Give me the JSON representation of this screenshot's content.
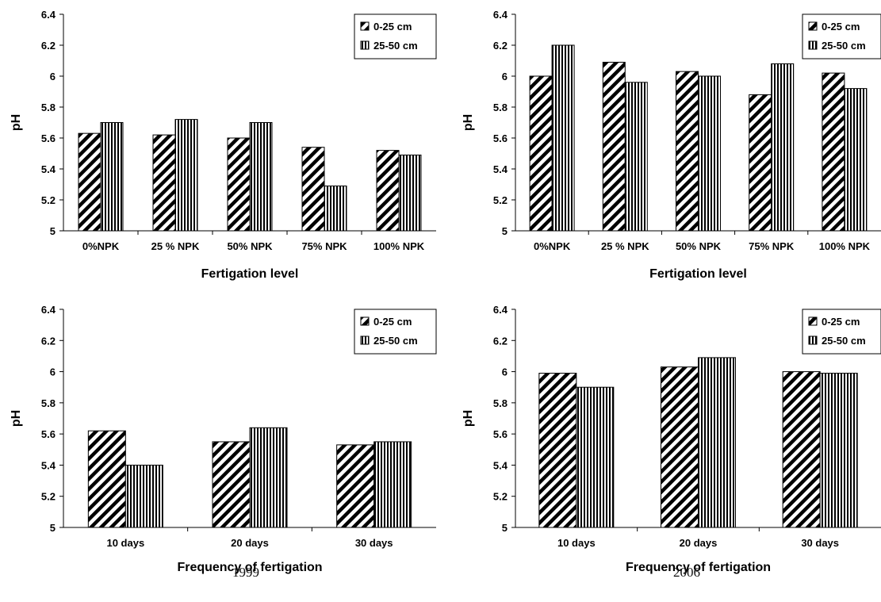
{
  "colors": {
    "stroke": "#000000",
    "fill": "#ffffff"
  },
  "captions": {
    "left": "1999",
    "right": "2006"
  },
  "chart_data": [
    {
      "type": "bar",
      "year": "1999",
      "categories": [
        "0%NPK",
        "25 % NPK",
        "50% NPK",
        "75% NPK",
        "100% NPK"
      ],
      "series": [
        {
          "name": "0-25 cm",
          "pattern": "diagonal",
          "values": [
            5.63,
            5.62,
            5.6,
            5.54,
            5.52
          ]
        },
        {
          "name": "25-50 cm",
          "pattern": "vertical",
          "values": [
            5.7,
            5.72,
            5.7,
            5.29,
            5.49
          ]
        }
      ],
      "xlabel": "Fertigation level",
      "ylabel": "pH",
      "ylim": [
        5,
        6.4
      ],
      "yticks": [
        "5",
        "5.2",
        "5.4",
        "5.6",
        "5.8",
        "6",
        "6.2",
        "6.4"
      ],
      "grid": false,
      "legend": "top-right"
    },
    {
      "type": "bar",
      "year": "2006",
      "categories": [
        "0%NPK",
        "25 % NPK",
        "50% NPK",
        "75% NPK",
        "100% NPK"
      ],
      "series": [
        {
          "name": "0-25 cm",
          "pattern": "diagonal",
          "values": [
            6.0,
            6.09,
            6.03,
            5.88,
            6.02
          ]
        },
        {
          "name": "25-50 cm",
          "pattern": "vertical",
          "values": [
            6.2,
            5.96,
            6.0,
            6.08,
            5.92
          ]
        }
      ],
      "xlabel": "Fertigation level",
      "ylabel": "pH",
      "ylim": [
        5,
        6.4
      ],
      "yticks": [
        "5",
        "5.2",
        "5.4",
        "5.6",
        "5.8",
        "6",
        "6.2",
        "6.4"
      ],
      "grid": false,
      "legend": "top-right"
    },
    {
      "type": "bar",
      "year": "1999",
      "categories": [
        "10 days",
        "20 days",
        "30 days"
      ],
      "series": [
        {
          "name": "0-25 cm",
          "pattern": "diagonal",
          "values": [
            5.62,
            5.55,
            5.53
          ]
        },
        {
          "name": "25-50 cm",
          "pattern": "vertical",
          "values": [
            5.4,
            5.64,
            5.55
          ]
        }
      ],
      "xlabel": "Frequency of fertigation",
      "ylabel": "pH",
      "ylim": [
        5,
        6.4
      ],
      "yticks": [
        "5",
        "5.2",
        "5.4",
        "5.6",
        "5.8",
        "6",
        "6.2",
        "6.4"
      ],
      "grid": false,
      "legend": "top-right"
    },
    {
      "type": "bar",
      "year": "2006",
      "categories": [
        "10 days",
        "20 days",
        "30 days"
      ],
      "series": [
        {
          "name": "0-25 cm",
          "pattern": "diagonal",
          "values": [
            5.99,
            6.03,
            6.0
          ]
        },
        {
          "name": "25-50 cm",
          "pattern": "vertical",
          "values": [
            5.9,
            6.09,
            5.99
          ]
        }
      ],
      "xlabel": "Frequency of fertigation",
      "ylabel": "pH",
      "ylim": [
        5,
        6.4
      ],
      "yticks": [
        "5",
        "5.2",
        "5.4",
        "5.6",
        "5.8",
        "6",
        "6.2",
        "6.4"
      ],
      "grid": false,
      "legend": "top-right"
    }
  ]
}
